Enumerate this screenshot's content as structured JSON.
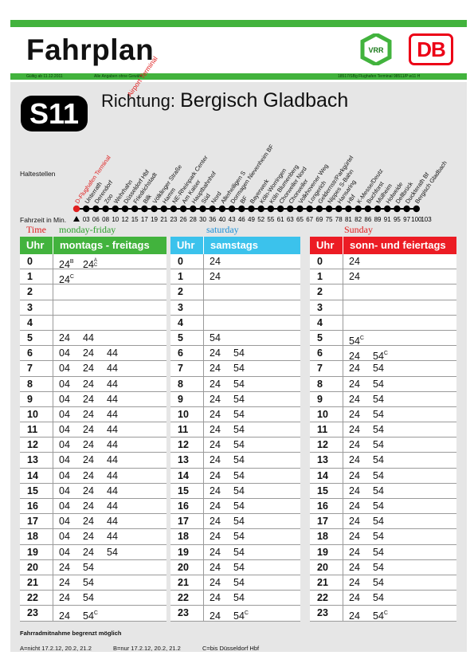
{
  "header": {
    "title": "Fahrplan",
    "vrr_logo": "VRR",
    "db_logo": "DB",
    "valid_from": "Gültig ab 11.12.2011",
    "disclaimer": "Alle Angaben ohne Gewähr",
    "doc_code": "18517/SBg Flughafen Terminal 98511/P w11 H",
    "colors": {
      "green": "#42b33d",
      "blue": "#3bc2ec",
      "red": "#ec1c24"
    }
  },
  "route": {
    "line": "S11",
    "direction_label": "Richtung:",
    "destination": "Bergisch Gladbach",
    "stops_label": "Haltestellen",
    "travel_time_label": "Fahrzeit in Min.",
    "stops": [
      {
        "name": "D-Flughafen Terminal",
        "time": "",
        "color": "#e02020"
      },
      {
        "name": "Unterrath",
        "time": "03"
      },
      {
        "name": "Derendorf",
        "time": "06"
      },
      {
        "name": "Zoo",
        "time": "08"
      },
      {
        "name": "Wehrhahn",
        "time": "10"
      },
      {
        "name": "Düsseldorf Hbf",
        "time": "12"
      },
      {
        "name": "Friedrichstadt",
        "time": "15"
      },
      {
        "name": "Bilk",
        "time": "17"
      },
      {
        "name": "Völklinger Straße",
        "time": "19"
      },
      {
        "name": "Hamm",
        "time": "21"
      },
      {
        "name": "NE-Rheinpark Center",
        "time": "23"
      },
      {
        "name": "Am Kaiser",
        "time": "26"
      },
      {
        "name": "Hauptbahnhof",
        "time": "28"
      },
      {
        "name": "Süd",
        "time": "30"
      },
      {
        "name": "Nord",
        "time": "36"
      },
      {
        "name": "Allerheiligen S",
        "time": "40"
      },
      {
        "name": "Dormagen Nievenheim BF",
        "time": "43"
      },
      {
        "name": "BF",
        "time": "46"
      },
      {
        "name": "Bayerwerk",
        "time": "49"
      },
      {
        "name": "Köln-Worringen",
        "time": "52"
      },
      {
        "name": "Köln Blumenberg",
        "time": "55"
      },
      {
        "name": "Chorweiler Nord",
        "time": "61"
      },
      {
        "name": "Chorweiler",
        "time": "63"
      },
      {
        "name": "Volkhovener Weg",
        "time": "65"
      },
      {
        "name": "Longerich",
        "time": "67"
      },
      {
        "name": "Geldernstr/Parkgürtel",
        "time": "69"
      },
      {
        "name": "Nippes S-Bahn",
        "time": "75"
      },
      {
        "name": "Hansaring",
        "time": "78"
      },
      {
        "name": "Hbf",
        "time": "81"
      },
      {
        "name": "K-Messe/Deutz",
        "time": "82"
      },
      {
        "name": "Buchforst",
        "time": "86"
      },
      {
        "name": "Mülheim",
        "time": "89"
      },
      {
        "name": "Holweide",
        "time": "91"
      },
      {
        "name": "Dellbrück",
        "time": "95"
      },
      {
        "name": "Duckterath Bf",
        "time": "97"
      },
      {
        "name": "Bergisch Gladbach",
        "time": "100"
      },
      {
        "name": "",
        "time": "103"
      }
    ],
    "airport_terminal_label": "Airport Terminal"
  },
  "translations": {
    "time": "Time",
    "weekday": "monday-friday",
    "saturday": "saturday",
    "sunday": "Sunday"
  },
  "tables": [
    {
      "uhr": "Uhr",
      "name": "montags - freitags",
      "color": "#42b33d",
      "rows": [
        {
          "h": "0",
          "m": [
            "24",
            "24"
          ],
          "note": [
            "B",
            "A/C"
          ]
        },
        {
          "h": "1",
          "m": [
            "24"
          ],
          "note": [
            "C"
          ]
        },
        {
          "h": "2",
          "m": []
        },
        {
          "h": "3",
          "m": []
        },
        {
          "h": "4",
          "m": []
        },
        {
          "h": "5",
          "m": [
            "24",
            "44"
          ]
        },
        {
          "h": "6",
          "m": [
            "04",
            "24",
            "44"
          ]
        },
        {
          "h": "7",
          "m": [
            "04",
            "24",
            "44"
          ]
        },
        {
          "h": "8",
          "m": [
            "04",
            "24",
            "44"
          ]
        },
        {
          "h": "9",
          "m": [
            "04",
            "24",
            "44"
          ]
        },
        {
          "h": "10",
          "m": [
            "04",
            "24",
            "44"
          ]
        },
        {
          "h": "11",
          "m": [
            "04",
            "24",
            "44"
          ]
        },
        {
          "h": "12",
          "m": [
            "04",
            "24",
            "44"
          ]
        },
        {
          "h": "13",
          "m": [
            "04",
            "24",
            "44"
          ]
        },
        {
          "h": "14",
          "m": [
            "04",
            "24",
            "44"
          ]
        },
        {
          "h": "15",
          "m": [
            "04",
            "24",
            "44"
          ]
        },
        {
          "h": "16",
          "m": [
            "04",
            "24",
            "44"
          ]
        },
        {
          "h": "17",
          "m": [
            "04",
            "24",
            "44"
          ]
        },
        {
          "h": "18",
          "m": [
            "04",
            "24",
            "44"
          ]
        },
        {
          "h": "19",
          "m": [
            "04",
            "24",
            "54"
          ]
        },
        {
          "h": "20",
          "m": [
            "24",
            "54"
          ]
        },
        {
          "h": "21",
          "m": [
            "24",
            "54"
          ]
        },
        {
          "h": "22",
          "m": [
            "24",
            "54"
          ]
        },
        {
          "h": "23",
          "m": [
            "24",
            "54"
          ],
          "note": [
            "",
            "C"
          ]
        }
      ]
    },
    {
      "uhr": "Uhr",
      "name": "samstags",
      "color": "#3bc2ec",
      "rows": [
        {
          "h": "0",
          "m": [
            "24"
          ]
        },
        {
          "h": "1",
          "m": [
            "24"
          ]
        },
        {
          "h": "2",
          "m": []
        },
        {
          "h": "3",
          "m": []
        },
        {
          "h": "4",
          "m": []
        },
        {
          "h": "5",
          "m": [
            "54"
          ]
        },
        {
          "h": "6",
          "m": [
            "24",
            "54"
          ]
        },
        {
          "h": "7",
          "m": [
            "24",
            "54"
          ]
        },
        {
          "h": "8",
          "m": [
            "24",
            "54"
          ]
        },
        {
          "h": "9",
          "m": [
            "24",
            "54"
          ]
        },
        {
          "h": "10",
          "m": [
            "24",
            "54"
          ]
        },
        {
          "h": "11",
          "m": [
            "24",
            "54"
          ]
        },
        {
          "h": "12",
          "m": [
            "24",
            "54"
          ]
        },
        {
          "h": "13",
          "m": [
            "24",
            "54"
          ]
        },
        {
          "h": "14",
          "m": [
            "24",
            "54"
          ]
        },
        {
          "h": "15",
          "m": [
            "24",
            "54"
          ]
        },
        {
          "h": "16",
          "m": [
            "24",
            "54"
          ]
        },
        {
          "h": "17",
          "m": [
            "24",
            "54"
          ]
        },
        {
          "h": "18",
          "m": [
            "24",
            "54"
          ]
        },
        {
          "h": "19",
          "m": [
            "24",
            "54"
          ]
        },
        {
          "h": "20",
          "m": [
            "24",
            "54"
          ]
        },
        {
          "h": "21",
          "m": [
            "24",
            "54"
          ]
        },
        {
          "h": "22",
          "m": [
            "24",
            "54"
          ]
        },
        {
          "h": "23",
          "m": [
            "24",
            "54"
          ],
          "note": [
            "",
            "C"
          ]
        }
      ]
    },
    {
      "uhr": "Uhr",
      "name": "sonn- und feiertags",
      "color": "#ec1c24",
      "rows": [
        {
          "h": "0",
          "m": [
            "24"
          ]
        },
        {
          "h": "1",
          "m": [
            "24"
          ]
        },
        {
          "h": "2",
          "m": []
        },
        {
          "h": "3",
          "m": []
        },
        {
          "h": "4",
          "m": []
        },
        {
          "h": "5",
          "m": [
            "54"
          ],
          "note": [
            "C"
          ]
        },
        {
          "h": "6",
          "m": [
            "24",
            "54"
          ],
          "note": [
            "",
            "C"
          ]
        },
        {
          "h": "7",
          "m": [
            "24",
            "54"
          ]
        },
        {
          "h": "8",
          "m": [
            "24",
            "54"
          ]
        },
        {
          "h": "9",
          "m": [
            "24",
            "54"
          ]
        },
        {
          "h": "10",
          "m": [
            "24",
            "54"
          ]
        },
        {
          "h": "11",
          "m": [
            "24",
            "54"
          ]
        },
        {
          "h": "12",
          "m": [
            "24",
            "54"
          ]
        },
        {
          "h": "13",
          "m": [
            "24",
            "54"
          ]
        },
        {
          "h": "14",
          "m": [
            "24",
            "54"
          ]
        },
        {
          "h": "15",
          "m": [
            "24",
            "54"
          ]
        },
        {
          "h": "16",
          "m": [
            "24",
            "54"
          ]
        },
        {
          "h": "17",
          "m": [
            "24",
            "54"
          ]
        },
        {
          "h": "18",
          "m": [
            "24",
            "54"
          ]
        },
        {
          "h": "19",
          "m": [
            "24",
            "54"
          ]
        },
        {
          "h": "20",
          "m": [
            "24",
            "54"
          ]
        },
        {
          "h": "21",
          "m": [
            "24",
            "54"
          ]
        },
        {
          "h": "22",
          "m": [
            "24",
            "54"
          ]
        },
        {
          "h": "23",
          "m": [
            "24",
            "54"
          ],
          "note": [
            "",
            "C"
          ]
        }
      ]
    }
  ],
  "footer": {
    "bike_note": "Fahrradmitnahme begrenzt möglich",
    "note_a": "A=nicht 17.2.12, 20.2, 21.2",
    "note_b": "B=nur 17.2.12, 20.2, 21.2",
    "note_c": "C=bis Düsseldorf Hbf"
  }
}
